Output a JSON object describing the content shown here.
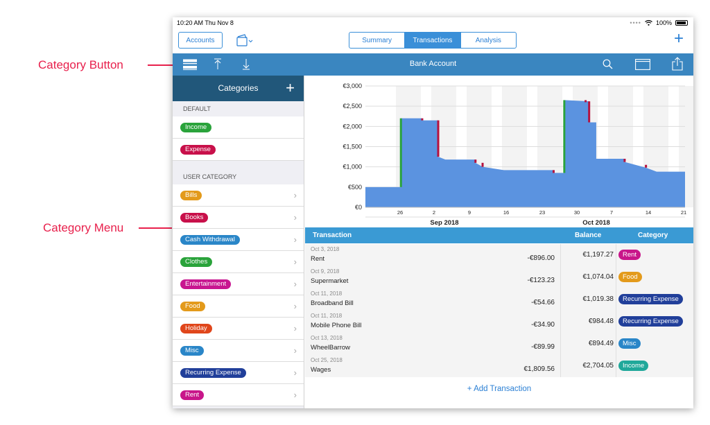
{
  "annotations": {
    "category_button": "Category Button",
    "category_menu": "Category Menu"
  },
  "status_bar": {
    "time": "10:20 AM   Thu Nov 8",
    "battery": "100%"
  },
  "nav": {
    "accounts_label": "Accounts",
    "tabs": [
      {
        "label": "Summary",
        "active": false
      },
      {
        "label": "Transactions",
        "active": true
      },
      {
        "label": "Analysis",
        "active": false
      }
    ],
    "add_label": "+"
  },
  "toolbar": {
    "title": "Bank Account"
  },
  "sidebar": {
    "title": "Categories",
    "add_label": "+",
    "default_section": "DEFAULT",
    "default_items": [
      {
        "label": "Income",
        "color": "#2aa33b"
      },
      {
        "label": "Expense",
        "color": "#c8104a"
      }
    ],
    "user_section": "USER CATEGORY",
    "user_items": [
      {
        "label": "Bills",
        "color": "#e39a1b"
      },
      {
        "label": "Books",
        "color": "#c8104a"
      },
      {
        "label": "Cash Withdrawal",
        "color": "#2a86c8"
      },
      {
        "label": "Clothes",
        "color": "#2aa33b"
      },
      {
        "label": "Entertainment",
        "color": "#c81690"
      },
      {
        "label": "Food",
        "color": "#e39a1b"
      },
      {
        "label": "Holiday",
        "color": "#e0461b"
      },
      {
        "label": "Misc",
        "color": "#2a86c8"
      },
      {
        "label": "Recurring Expense",
        "color": "#213f9a"
      },
      {
        "label": "Rent",
        "color": "#c8168a"
      }
    ]
  },
  "chart_data": {
    "type": "area",
    "y_ticks": [
      "€3,000",
      "€2,500",
      "€2,000",
      "€1,500",
      "€1,000",
      "€500",
      "€0"
    ],
    "ylim": [
      0,
      3000
    ],
    "x_ticks": [
      "26",
      "2",
      "9",
      "16",
      "23",
      "30",
      "7",
      "14",
      "21"
    ],
    "months": [
      "Sep 2018",
      "Oct 2018"
    ],
    "balance_steps": [
      {
        "x": 0,
        "y": 500
      },
      {
        "x": 1,
        "y": 500
      },
      {
        "x": 1,
        "y": 2200
      },
      {
        "x": 1.6,
        "y": 2200
      },
      {
        "x": 1.6,
        "y": 2150
      },
      {
        "x": 2.05,
        "y": 2150
      },
      {
        "x": 2.05,
        "y": 1250
      },
      {
        "x": 2.25,
        "y": 1180
      },
      {
        "x": 3.1,
        "y": 1180
      },
      {
        "x": 3.1,
        "y": 1100
      },
      {
        "x": 3.3,
        "y": 1000
      },
      {
        "x": 3.6,
        "y": 960
      },
      {
        "x": 3.9,
        "y": 920
      },
      {
        "x": 5.3,
        "y": 920
      },
      {
        "x": 5.3,
        "y": 850
      },
      {
        "x": 5.6,
        "y": 850
      },
      {
        "x": 5.6,
        "y": 2650
      },
      {
        "x": 6.3,
        "y": 2620
      },
      {
        "x": 6.3,
        "y": 2100
      },
      {
        "x": 6.5,
        "y": 2100
      },
      {
        "x": 6.5,
        "y": 1200
      },
      {
        "x": 7.3,
        "y": 1200
      },
      {
        "x": 7.3,
        "y": 1120
      },
      {
        "x": 7.6,
        "y": 1050
      },
      {
        "x": 7.9,
        "y": 980
      },
      {
        "x": 8.2,
        "y": 880
      },
      {
        "x": 9,
        "y": 880
      }
    ],
    "income_markers": [
      {
        "x": 1,
        "from": 500,
        "to": 2200
      },
      {
        "x": 5.6,
        "from": 850,
        "to": 2650
      }
    ],
    "expense_markers": [
      {
        "x": 1.6,
        "from": 2200,
        "to": 2150
      },
      {
        "x": 2.05,
        "from": 2150,
        "to": 1250
      },
      {
        "x": 3.1,
        "from": 1180,
        "to": 1100
      },
      {
        "x": 3.3,
        "from": 1100,
        "to": 1000
      },
      {
        "x": 5.3,
        "from": 920,
        "to": 850
      },
      {
        "x": 6.3,
        "from": 2620,
        "to": 2100
      },
      {
        "x": 7.3,
        "from": 1200,
        "to": 1120
      },
      {
        "x": 7.9,
        "from": 1050,
        "to": 980
      },
      {
        "x": 6.2,
        "from": 2650,
        "to": 2620
      }
    ]
  },
  "table": {
    "headers": {
      "transaction": "Transaction",
      "balance": "Balance",
      "category": "Category"
    },
    "rows": [
      {
        "date": "Oct 3, 2018",
        "name": "Rent",
        "amount": "-€896.00",
        "balance": "€1,197.27",
        "category": "Rent",
        "color": "#c8168a"
      },
      {
        "date": "Oct 9, 2018",
        "name": "Supermarket",
        "amount": "-€123.23",
        "balance": "€1,074.04",
        "category": "Food",
        "color": "#e39a1b"
      },
      {
        "date": "Oct 11, 2018",
        "name": "Broadband Bill",
        "amount": "-€54.66",
        "balance": "€1,019.38",
        "category": "Recurring Expense",
        "color": "#213f9a"
      },
      {
        "date": "Oct 11, 2018",
        "name": "Mobile Phone Bill",
        "amount": "-€34.90",
        "balance": "€984.48",
        "category": "Recurring Expense",
        "color": "#213f9a"
      },
      {
        "date": "Oct 13, 2018",
        "name": "WheelBarrow",
        "amount": "-€89.99",
        "balance": "€894.49",
        "category": "Misc",
        "color": "#2a86c8"
      },
      {
        "date": "Oct 25, 2018",
        "name": "Wages",
        "amount": "€1,809.56",
        "balance": "€2,704.05",
        "category": "Income",
        "color": "#20a89a"
      }
    ],
    "add_label": "+ Add Transaction"
  }
}
